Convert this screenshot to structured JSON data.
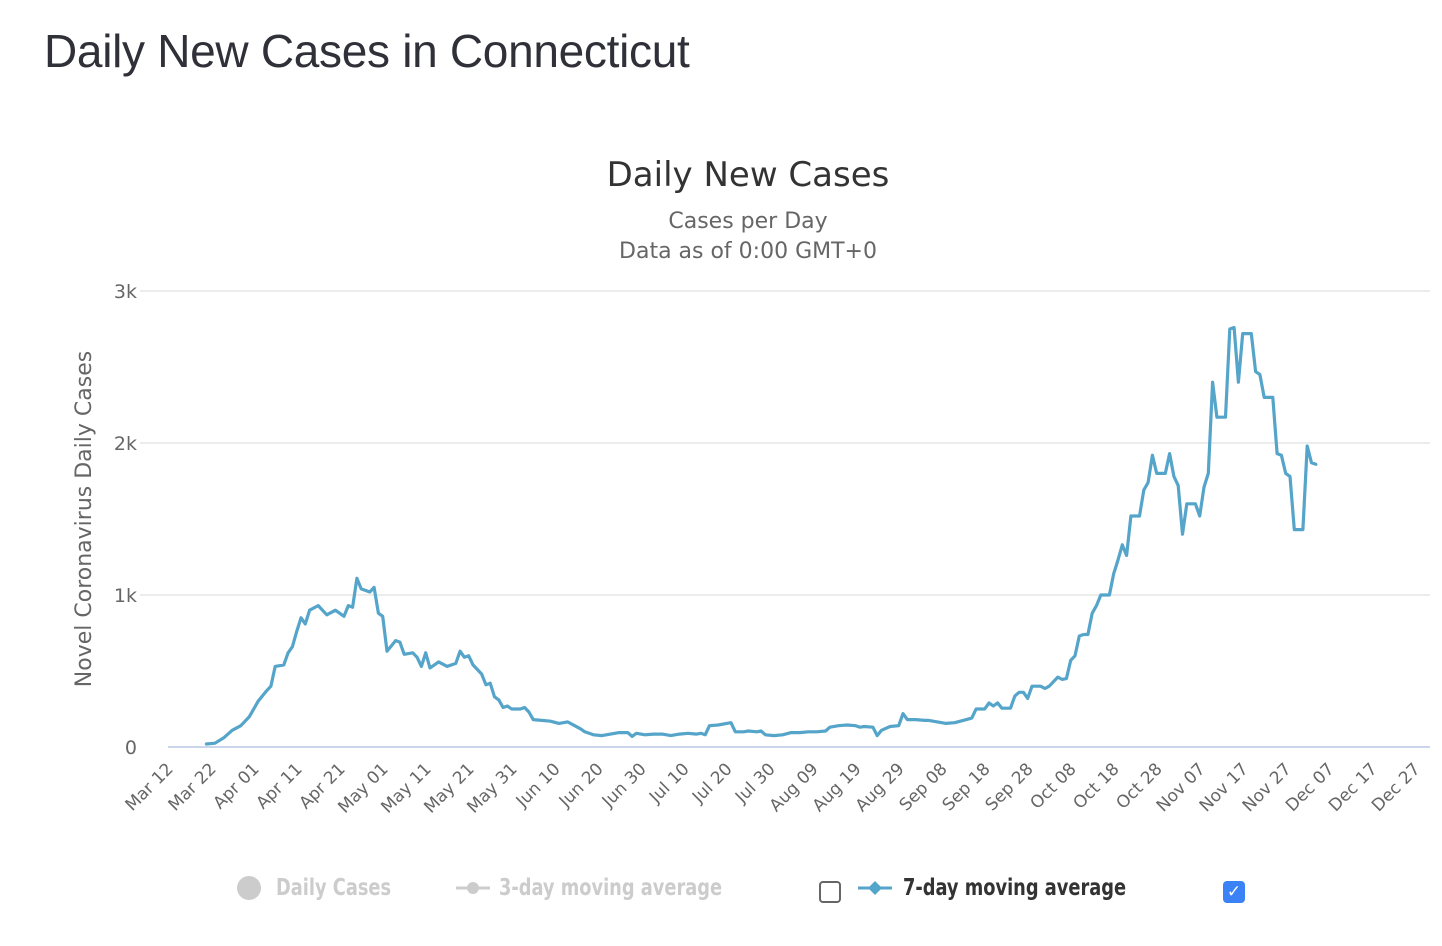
{
  "page": {
    "title": "Daily New Cases in Connecticut"
  },
  "chart_data": {
    "type": "line",
    "title": "Daily New Cases",
    "subtitle_lines": [
      "Cases per Day",
      "Data as of 0:00 GMT+0"
    ],
    "xlabel": "",
    "ylabel": "Novel Coronavirus Daily Cases",
    "ylim": [
      0,
      3000
    ],
    "yticks": [
      0,
      1000,
      2000,
      3000
    ],
    "ytick_labels": [
      "0",
      "1k",
      "2k",
      "3k"
    ],
    "grid": true,
    "x_start_date": "Mar 12",
    "x_end_day": 295,
    "xtick_labels": [
      "Mar 12",
      "Mar 22",
      "Apr 01",
      "Apr 11",
      "Apr 21",
      "May 01",
      "May 11",
      "May 21",
      "May 31",
      "Jun 10",
      "Jun 20",
      "Jun 30",
      "Jul 10",
      "Jul 20",
      "Jul 30",
      "Aug 09",
      "Aug 19",
      "Aug 29",
      "Sep 08",
      "Sep 18",
      "Sep 28",
      "Oct 08",
      "Oct 18",
      "Oct 28",
      "Nov 07",
      "Nov 17",
      "Nov 27",
      "Dec 07",
      "Dec 17",
      "Dec 27"
    ],
    "xtick_days": [
      0,
      10,
      20,
      30,
      40,
      50,
      60,
      70,
      80,
      90,
      100,
      110,
      120,
      130,
      140,
      150,
      160,
      170,
      180,
      190,
      200,
      210,
      220,
      230,
      240,
      250,
      260,
      270,
      280,
      290
    ],
    "series": [
      {
        "name": "7-day moving average",
        "color": "#55a4c9",
        "visible": true,
        "points_day_value": [
          [
            8,
            20
          ],
          [
            10,
            25
          ],
          [
            12,
            60
          ],
          [
            14,
            110
          ],
          [
            16,
            140
          ],
          [
            18,
            200
          ],
          [
            20,
            300
          ],
          [
            22,
            370
          ],
          [
            23,
            400
          ],
          [
            24,
            530
          ],
          [
            26,
            540
          ],
          [
            27,
            620
          ],
          [
            28,
            660
          ],
          [
            29,
            760
          ],
          [
            30,
            850
          ],
          [
            31,
            810
          ],
          [
            32,
            900
          ],
          [
            34,
            930
          ],
          [
            36,
            870
          ],
          [
            38,
            900
          ],
          [
            40,
            860
          ],
          [
            41,
            930
          ],
          [
            42,
            920
          ],
          [
            43,
            1110
          ],
          [
            44,
            1040
          ],
          [
            46,
            1020
          ],
          [
            47,
            1050
          ],
          [
            48,
            880
          ],
          [
            49,
            860
          ],
          [
            50,
            630
          ],
          [
            52,
            700
          ],
          [
            53,
            690
          ],
          [
            54,
            610
          ],
          [
            56,
            620
          ],
          [
            57,
            590
          ],
          [
            58,
            530
          ],
          [
            59,
            620
          ],
          [
            60,
            520
          ],
          [
            62,
            560
          ],
          [
            64,
            530
          ],
          [
            66,
            550
          ],
          [
            67,
            630
          ],
          [
            68,
            590
          ],
          [
            69,
            600
          ],
          [
            70,
            540
          ],
          [
            72,
            480
          ],
          [
            73,
            410
          ],
          [
            74,
            420
          ],
          [
            75,
            330
          ],
          [
            76,
            310
          ],
          [
            77,
            260
          ],
          [
            78,
            270
          ],
          [
            79,
            250
          ],
          [
            81,
            250
          ],
          [
            82,
            260
          ],
          [
            83,
            230
          ],
          [
            84,
            180
          ],
          [
            86,
            175
          ],
          [
            88,
            170
          ],
          [
            90,
            155
          ],
          [
            92,
            165
          ],
          [
            93,
            150
          ],
          [
            95,
            120
          ],
          [
            96,
            100
          ],
          [
            98,
            80
          ],
          [
            100,
            75
          ],
          [
            102,
            85
          ],
          [
            104,
            95
          ],
          [
            106,
            95
          ],
          [
            107,
            70
          ],
          [
            108,
            90
          ],
          [
            110,
            80
          ],
          [
            112,
            85
          ],
          [
            114,
            85
          ],
          [
            116,
            75
          ],
          [
            118,
            85
          ],
          [
            120,
            90
          ],
          [
            122,
            85
          ],
          [
            123,
            90
          ],
          [
            124,
            80
          ],
          [
            125,
            140
          ],
          [
            127,
            145
          ],
          [
            129,
            155
          ],
          [
            130,
            160
          ],
          [
            131,
            100
          ],
          [
            133,
            100
          ],
          [
            134,
            105
          ],
          [
            136,
            100
          ],
          [
            137,
            105
          ],
          [
            138,
            80
          ],
          [
            140,
            75
          ],
          [
            142,
            80
          ],
          [
            144,
            95
          ],
          [
            146,
            95
          ],
          [
            148,
            100
          ],
          [
            150,
            100
          ],
          [
            152,
            105
          ],
          [
            153,
            130
          ],
          [
            155,
            140
          ],
          [
            157,
            145
          ],
          [
            159,
            140
          ],
          [
            160,
            130
          ],
          [
            161,
            135
          ],
          [
            163,
            130
          ],
          [
            164,
            75
          ],
          [
            165,
            110
          ],
          [
            167,
            135
          ],
          [
            169,
            140
          ],
          [
            170,
            220
          ],
          [
            171,
            180
          ],
          [
            173,
            180
          ],
          [
            175,
            175
          ],
          [
            176,
            175
          ],
          [
            178,
            165
          ],
          [
            180,
            155
          ],
          [
            182,
            160
          ],
          [
            184,
            175
          ],
          [
            186,
            190
          ],
          [
            187,
            250
          ],
          [
            189,
            250
          ],
          [
            190,
            290
          ],
          [
            191,
            270
          ],
          [
            192,
            290
          ],
          [
            193,
            255
          ],
          [
            195,
            255
          ],
          [
            196,
            335
          ],
          [
            197,
            360
          ],
          [
            198,
            360
          ],
          [
            199,
            320
          ],
          [
            200,
            400
          ],
          [
            202,
            400
          ],
          [
            203,
            385
          ],
          [
            204,
            400
          ],
          [
            206,
            460
          ],
          [
            207,
            445
          ],
          [
            208,
            450
          ],
          [
            209,
            570
          ],
          [
            210,
            600
          ],
          [
            211,
            730
          ],
          [
            212,
            740
          ],
          [
            213,
            740
          ],
          [
            214,
            880
          ],
          [
            215,
            930
          ],
          [
            216,
            1000
          ],
          [
            218,
            1000
          ],
          [
            219,
            1140
          ],
          [
            220,
            1230
          ],
          [
            221,
            1330
          ],
          [
            222,
            1260
          ],
          [
            223,
            1520
          ],
          [
            225,
            1520
          ],
          [
            226,
            1690
          ],
          [
            227,
            1740
          ],
          [
            228,
            1920
          ],
          [
            229,
            1800
          ],
          [
            231,
            1800
          ],
          [
            232,
            1930
          ],
          [
            233,
            1780
          ],
          [
            234,
            1720
          ],
          [
            235,
            1400
          ],
          [
            236,
            1600
          ],
          [
            238,
            1600
          ],
          [
            239,
            1520
          ],
          [
            240,
            1710
          ],
          [
            241,
            1800
          ],
          [
            242,
            2400
          ],
          [
            243,
            2170
          ],
          [
            245,
            2170
          ],
          [
            246,
            2750
          ],
          [
            247,
            2760
          ],
          [
            248,
            2400
          ],
          [
            249,
            2720
          ],
          [
            251,
            2720
          ],
          [
            252,
            2470
          ],
          [
            253,
            2450
          ],
          [
            254,
            2300
          ],
          [
            256,
            2300
          ],
          [
            257,
            1930
          ],
          [
            258,
            1920
          ],
          [
            259,
            1800
          ],
          [
            260,
            1780
          ],
          [
            261,
            1430
          ],
          [
            263,
            1430
          ],
          [
            264,
            1980
          ],
          [
            265,
            1870
          ],
          [
            266,
            1860
          ]
        ]
      }
    ],
    "legend": [
      {
        "label": "Daily Cases",
        "icon": "circle-marker-icon",
        "active": false
      },
      {
        "label": "3-day moving average",
        "icon": "line-circle-marker-icon",
        "active": false
      },
      {
        "label": "7-day moving average",
        "icon": "line-diamond-marker-icon",
        "active": true
      }
    ],
    "legend_position": "bottom",
    "checkboxes": [
      {
        "for": "3-day moving average",
        "checked": false
      },
      {
        "for": "7-day moving average",
        "checked": true
      }
    ],
    "colors": {
      "line": "#55a4c9",
      "grid": "#e6e6e6",
      "axis": "#ccd6eb",
      "legend_inactive": "#cccccc",
      "checkbox_checked": "#3b82f6"
    }
  }
}
